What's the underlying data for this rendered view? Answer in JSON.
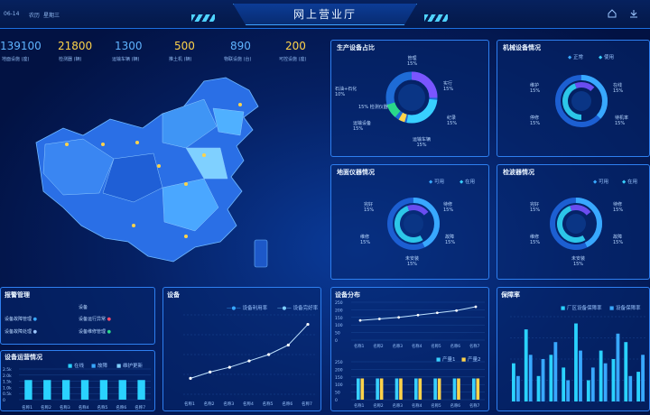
{
  "header": {
    "title": "网上营业厅",
    "date": "06-14",
    "left_text_a": "农历",
    "left_text_b": "星期三"
  },
  "kpis": [
    {
      "value": "139100",
      "label": "地面设施 (座)",
      "color": "#5fb3ff"
    },
    {
      "value": "21800",
      "label": "检测器 (辆)",
      "color": "#ffd34a"
    },
    {
      "value": "1300",
      "label": "运输车辆 (辆)",
      "color": "#5fb3ff"
    },
    {
      "value": "500",
      "label": "推土机 (辆)",
      "color": "#ffd34a"
    },
    {
      "value": "890",
      "label": "物联设施 (台)",
      "color": "#5fb3ff"
    },
    {
      "value": "200",
      "label": "可控设施 (座)",
      "color": "#ffd34a"
    }
  ],
  "donut_panels": [
    {
      "title": "生产设备占比",
      "labels": [
        {
          "name": "管理",
          "pct": "15%"
        },
        {
          "name": "实行",
          "pct": "15%"
        },
        {
          "name": "纪录",
          "pct": "15%"
        },
        {
          "name": "运输车辆",
          "pct": "15%"
        },
        {
          "name": "运输设备",
          "pct": "15%"
        },
        {
          "name": "检测仪器",
          "pct": "15%"
        },
        {
          "name": "石油+石化",
          "pct": "10%"
        }
      ]
    },
    {
      "title": "机械设备情况",
      "legend": [
        "正常",
        "使用"
      ],
      "labels": [
        {
          "name": "维护",
          "pct": "15%"
        },
        {
          "name": "在线",
          "pct": "15%"
        },
        {
          "name": "停修",
          "pct": "15%"
        },
        {
          "name": "待机率",
          "pct": "15%"
        }
      ]
    },
    {
      "title": "地面仪器情况",
      "legend": [
        "可用",
        "在用"
      ],
      "labels": [
        {
          "name": "完好",
          "pct": "15%"
        },
        {
          "name": "待修",
          "pct": "15%"
        },
        {
          "name": "维修",
          "pct": "15%"
        },
        {
          "name": "故障",
          "pct": "15%"
        },
        {
          "name": "未安装",
          "pct": "15%"
        }
      ]
    },
    {
      "title": "检波器情况",
      "legend": [
        "可用",
        "在用"
      ],
      "labels": [
        {
          "name": "完好",
          "pct": "15%"
        },
        {
          "name": "待修",
          "pct": "15%"
        },
        {
          "name": "维修",
          "pct": "15%"
        },
        {
          "name": "故障",
          "pct": "15%"
        },
        {
          "name": "未安装",
          "pct": "15%"
        }
      ]
    }
  ],
  "alarm_panel": {
    "title": "报警管理",
    "col2": "设备",
    "rows": [
      {
        "a": "设备故障管理",
        "b": "设备运行异常"
      },
      {
        "a": "设备故障处理",
        "b": "设备维修管理"
      }
    ]
  },
  "small_bar_panel": {
    "title": "设备运营情况",
    "legend": [
      "在线",
      "故障",
      "维护更新"
    ],
    "yticks": [
      "2.5k",
      "2.0k",
      "1.5k",
      "1.0k",
      "0.5k",
      "0"
    ],
    "categories": [
      "名称1",
      "名称2",
      "名称3",
      "名称4",
      "名称5",
      "名称6",
      "名称7"
    ],
    "values": [
      1.6,
      1.6,
      1.6,
      1.6,
      1.6,
      1.6,
      1.6
    ]
  },
  "chart_data": [
    {
      "type": "line",
      "title": "设备",
      "legend": [
        "设备利用率",
        "设备完好率"
      ],
      "categories": [
        "名称1",
        "名称2",
        "名称3",
        "名称4",
        "名称5",
        "名称6",
        "名称7"
      ],
      "series": [
        {
          "name": "设备利用率",
          "values": [
            20,
            28,
            34,
            42,
            50,
            62,
            88
          ]
        }
      ],
      "ylim": [
        0,
        100
      ]
    },
    {
      "type": "line",
      "title": "设备分布",
      "yticks": [
        "250",
        "200",
        "150",
        "100",
        "50",
        "0"
      ],
      "categories": [
        "名称1",
        "名称2",
        "名称3",
        "名称4",
        "名称5",
        "名称6",
        "名称7"
      ],
      "series": [
        {
          "name": "",
          "values": [
            130,
            140,
            150,
            165,
            180,
            195,
            220
          ]
        }
      ],
      "ylim": [
        0,
        250
      ]
    },
    {
      "type": "bar",
      "legend": [
        "产量1",
        "产量2"
      ],
      "yticks": [
        "250",
        "200",
        "150",
        "100",
        "50",
        "0"
      ],
      "categories": [
        "名称1",
        "名称2",
        "名称3",
        "名称4",
        "名称5",
        "名称6",
        "名称7"
      ],
      "series": [
        {
          "name": "产量1",
          "values": [
            140,
            140,
            140,
            140,
            140,
            140,
            140
          ]
        },
        {
          "name": "产量2",
          "values": [
            140,
            140,
            140,
            140,
            140,
            140,
            140
          ]
        }
      ],
      "ylim": [
        0,
        250
      ]
    },
    {
      "type": "bar",
      "title": "保障率",
      "legend": [
        "厂区设备保障率",
        "设备保障率"
      ],
      "series": [
        {
          "name": "厂区设备保障率",
          "values": [
            45,
            85,
            30,
            55,
            40,
            92,
            25,
            60,
            50,
            70,
            35
          ]
        },
        {
          "name": "设备保障率",
          "values": [
            30,
            55,
            50,
            70,
            25,
            60,
            40,
            45,
            80,
            30,
            55
          ]
        }
      ],
      "ylim": [
        0,
        100
      ]
    }
  ]
}
